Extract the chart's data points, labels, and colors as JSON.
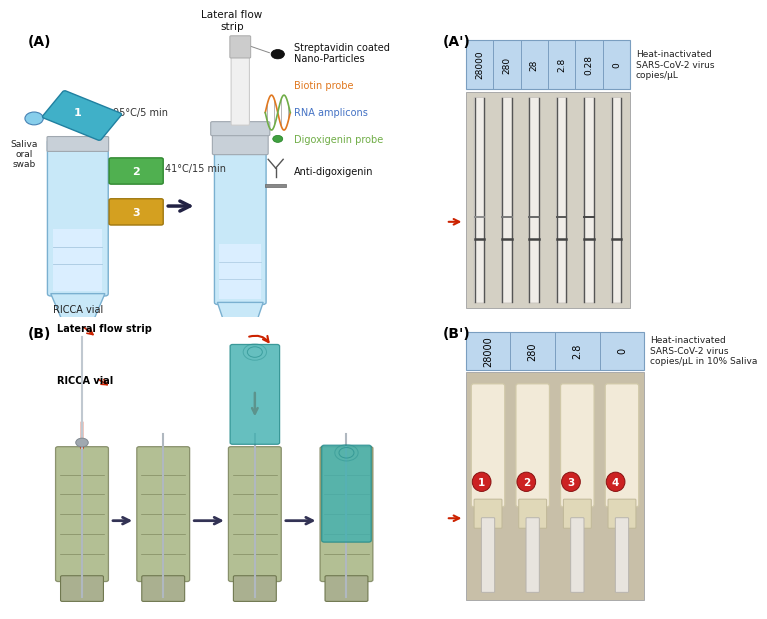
{
  "panel_A_label": "(A)",
  "panel_Ap_label": "(A')",
  "panel_B_label": "(B)",
  "panel_Bp_label": "(B')",
  "Ap_headers": [
    "28000",
    "280",
    "28",
    "2.8",
    "0.28",
    "0"
  ],
  "Ap_label": "Heat-inactivated\nSARS-CoV-2 virus\ncopies/μL",
  "Bp_headers": [
    "28000",
    "280",
    "2.8",
    "0"
  ],
  "Bp_label": "Heat-inactivated\nSARS-CoV-2 virus\ncopies/μL in 10% Saliva",
  "text_lateral_flow_strip_A": "Lateral flow\nstrip",
  "text_lateral_flow_strip_B": "Lateral flow strip",
  "text_ricca_vial_B": "RICCA vial",
  "text_saliva": "Saliva\noral\nswab",
  "text_ricca_vial_A": "RICCA vial",
  "text_step1": "95°C/5 min",
  "text_step2": "41°C/15 min",
  "text_strep": "Streptavidin coated\nNano-Particles",
  "text_biotin": "Biotin probe",
  "text_rna": "RNA amplicons",
  "text_dig_probe": "Digoxigenin probe",
  "text_anti_dig": "Anti-digoxigenin",
  "color_biotin": "#E07820",
  "color_rna": "#4472C4",
  "color_dig_probe": "#70AD47",
  "bg_color": "#ffffff",
  "header_bg": "#BDD7EE",
  "tube_body": "#c8e8f8",
  "tube_edge": "#7ab0d0",
  "tube_cap1": "#40B0C8",
  "tube_cap1_edge": "#2080A0",
  "cap2_color": "#50B050",
  "cap3_color": "#D4A020",
  "vial_gray": "#B0B8C0",
  "strip_body": "#f0f0f0",
  "olive_color": "#9aaa70",
  "teal_color": "#40B0B0",
  "photo_bg_Ap": "#d8d4c8",
  "photo_bg_Bp": "#c8bea0"
}
